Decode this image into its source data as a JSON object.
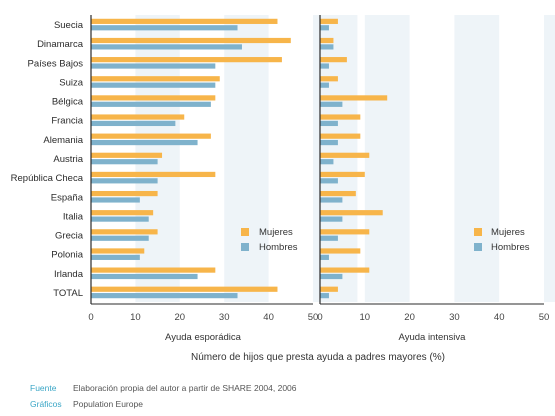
{
  "chart_data": [
    {
      "type": "bar",
      "orientation": "horizontal",
      "subtitle": "Ayuda esporádica",
      "categories": [
        "Suecia",
        "Dinamarca",
        "Países Bajos",
        "Suiza",
        "Bélgica",
        "Francia",
        "Alemania",
        "Austria",
        "República Checa",
        "España",
        "Italia",
        "Grecia",
        "Polonia",
        "Irlanda",
        "TOTAL"
      ],
      "series": [
        {
          "name": "Mujeres",
          "color": "#f7b54a",
          "values": [
            42,
            45,
            43,
            29,
            28,
            21,
            27,
            16,
            28,
            15,
            14,
            15,
            12,
            28,
            42
          ]
        },
        {
          "name": "Hombres",
          "color": "#7fb2cc",
          "values": [
            33,
            34,
            28,
            28,
            27,
            19,
            24,
            15,
            15,
            11,
            13,
            13,
            11,
            24,
            33
          ]
        }
      ],
      "xlim": [
        0,
        50
      ],
      "xticks": [
        "0",
        "10",
        "20",
        "30",
        "40",
        "50"
      ]
    },
    {
      "type": "bar",
      "orientation": "horizontal",
      "subtitle": "Ayuda intensiva",
      "categories": [
        "Suecia",
        "Dinamarca",
        "Países Bajos",
        "Suiza",
        "Bélgica",
        "Francia",
        "Alemania",
        "Austria",
        "República Checa",
        "España",
        "Italia",
        "Grecia",
        "Polonia",
        "Irlanda",
        "TOTAL"
      ],
      "series": [
        {
          "name": "Mujeres",
          "color": "#f7b54a",
          "values": [
            4,
            3,
            6,
            4,
            15,
            9,
            9,
            11,
            10,
            8,
            14,
            11,
            9,
            11,
            4
          ]
        },
        {
          "name": "Hombres",
          "color": "#7fb2cc",
          "values": [
            2,
            3,
            2,
            2,
            5,
            4,
            4,
            3,
            4,
            5,
            5,
            4,
            2,
            5,
            2
          ]
        }
      ],
      "xlim": [
        0,
        50
      ],
      "xticks": [
        "0",
        "10",
        "20",
        "30",
        "40",
        "50"
      ]
    }
  ],
  "x_axis_title": "Número de hijos que presta ayuda a padres mayores (%)",
  "legend": {
    "mujeres": "Mujeres",
    "hombres": "Hombres"
  },
  "footer": {
    "source_key": "Fuente",
    "source_value": "Elaboración propia del autor a partir de SHARE 2004, 2006",
    "graphics_key": "Gráficos",
    "graphics_value": "Population Europe"
  },
  "colors": {
    "mujeres": "#f7b54a",
    "hombres": "#7fb2cc",
    "band": "#eef4f8"
  }
}
